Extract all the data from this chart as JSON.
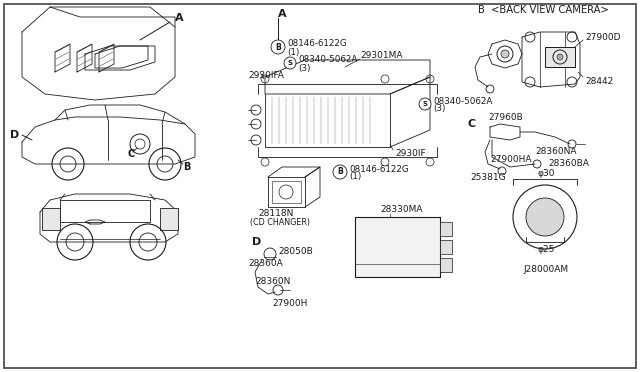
{
  "background_color": "#ffffff",
  "border_color": "#444444",
  "lc": "#1a1a1a",
  "lw": 0.6,
  "sections": {
    "title_b_camera": "B <BACK VIEW CAMERA>",
    "label_a": "A",
    "label_b": "B",
    "label_c": "C",
    "label_d_left": "D",
    "label_d_center": "D"
  },
  "part_numbers": {
    "b_bolt_top": "08146-6122G",
    "b_bolt_top_qty": "(1)",
    "s_bolt_top": "08340-5062A",
    "s_bolt_top_qty": "(3)",
    "unit_label": "29301MA",
    "s_bolt_right": "08340-5062A",
    "s_bolt_right_qty": "(3)",
    "unit_face": "2930IFA",
    "unit_bracket": "2930IF",
    "cd_changer": "28118N",
    "cd_changer_label": "(CD CHANGER)",
    "b_bolt_bottom": "08146-6122G",
    "b_bolt_bottom_qty": "(1)",
    "antenna_bolt": "28050B",
    "antenna_cable1": "28360A",
    "antenna_plug": "27900H",
    "antenna_cable2": "28360N",
    "module_box": "28330MA",
    "camera_cable": "27900D",
    "bracket": "28442",
    "sensor_cable": "27960B",
    "sensor_conn1": "28360NA",
    "sensor_conn2": "27900HA",
    "sensor_conn3": "28360BA",
    "sensor_part": "25381G",
    "dim_outer": "φ30",
    "dim_inner": "φ25",
    "drawing_no": "J28000AM"
  }
}
